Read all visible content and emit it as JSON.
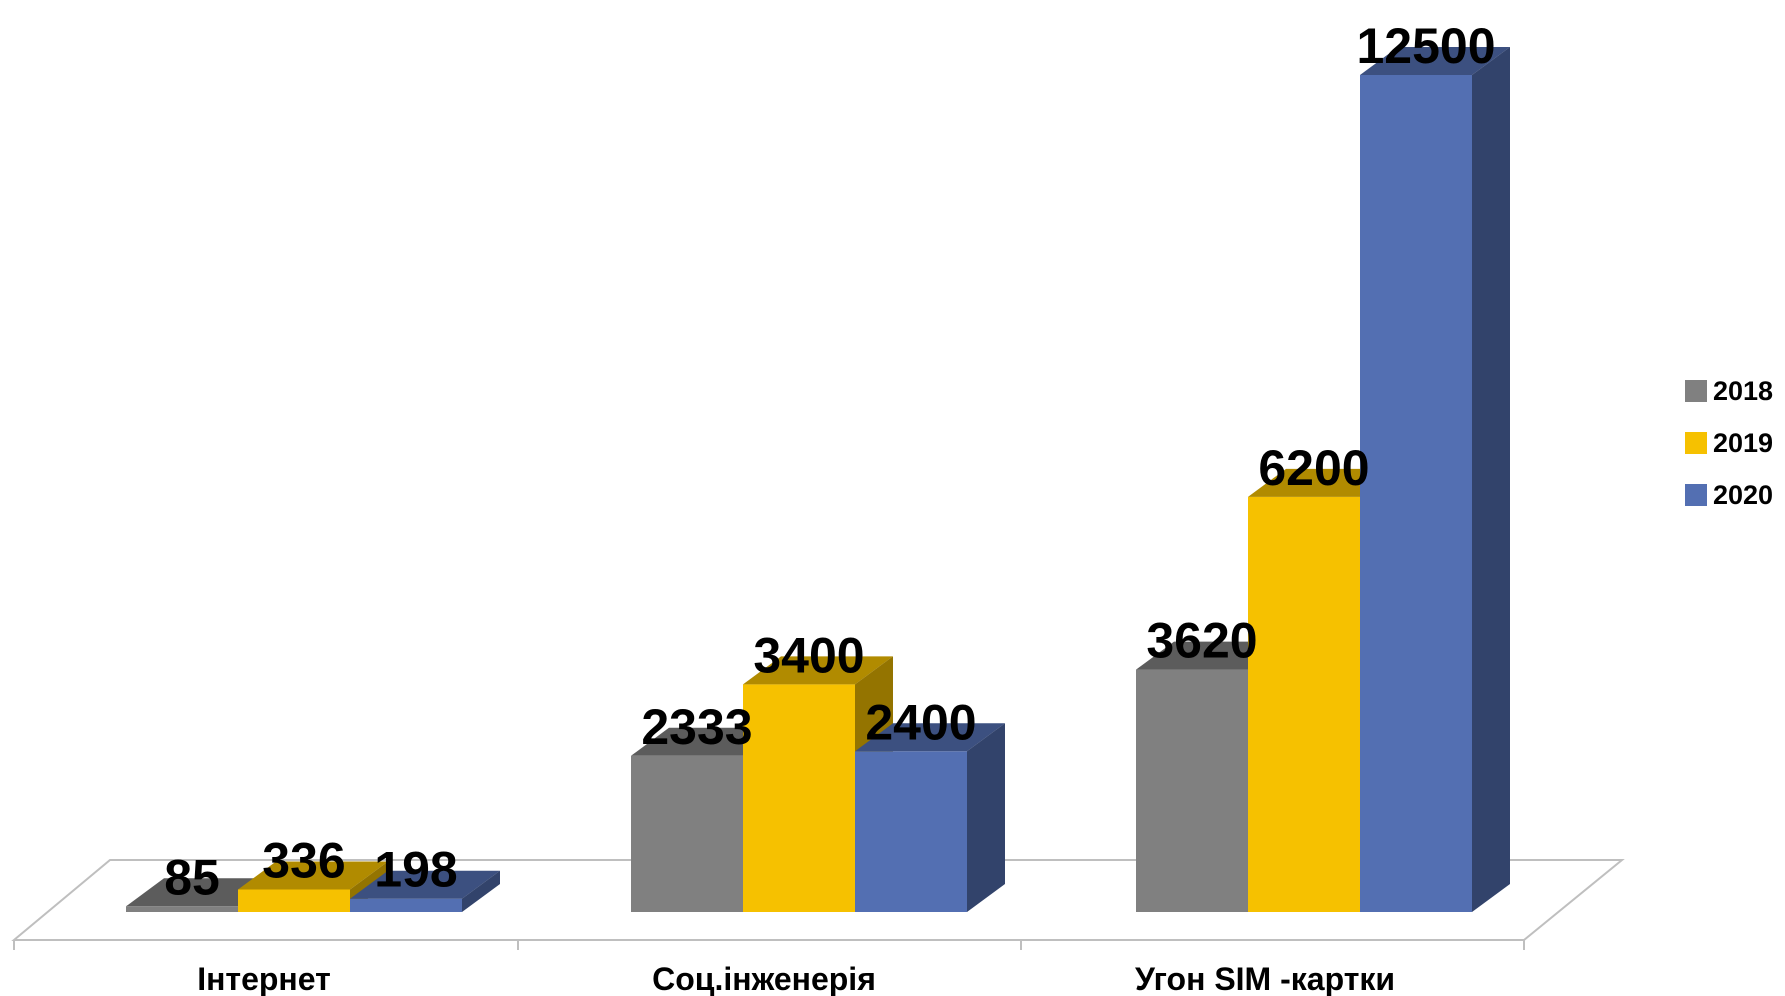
{
  "chart_data": {
    "type": "bar",
    "style": "3d-clustered-column",
    "categories": [
      "Інтернет",
      "Соц.інженерія",
      "Угон SIM -картки"
    ],
    "series": [
      {
        "name": "2018",
        "values": [
          85,
          2333,
          3620
        ],
        "color": "#808080"
      },
      {
        "name": "2019",
        "values": [
          336,
          3400,
          6200
        ],
        "color": "#F6C100"
      },
      {
        "name": "2020",
        "values": [
          198,
          2400,
          12500
        ],
        "color": "#536FB2"
      }
    ],
    "data_labels": true,
    "legend": "right",
    "grid": false
  }
}
